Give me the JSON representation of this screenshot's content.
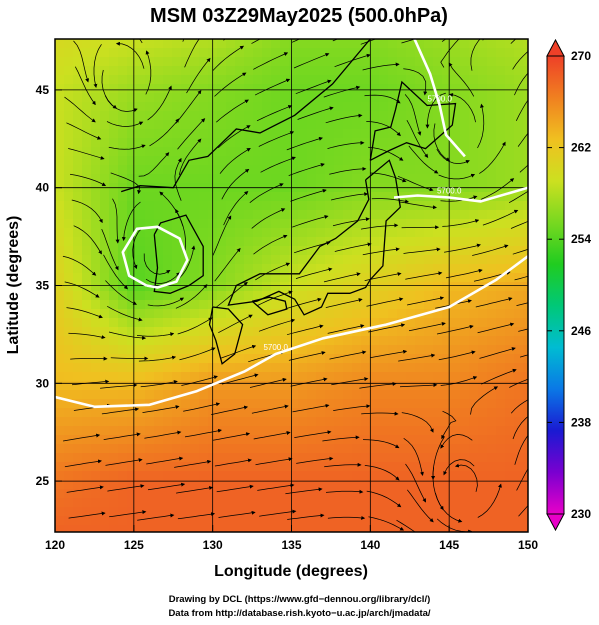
{
  "chart_data": {
    "type": "heatmap",
    "title": "MSM 03Z29May2025 (500.0hPa)",
    "xlabel": "Longitude (degrees)",
    "ylabel": "Latitude  (degrees)",
    "xlim": [
      120,
      150
    ],
    "ylim": [
      22.4,
      47.6
    ],
    "x_ticks": [
      120,
      125,
      130,
      135,
      140,
      145,
      150
    ],
    "y_ticks": [
      25,
      30,
      35,
      40,
      45
    ],
    "colorbar": {
      "ticks": [
        230,
        238,
        246,
        254,
        262,
        270
      ],
      "range": [
        230,
        270
      ],
      "colors": [
        "#e800c8",
        "#7a00d0",
        "#1a1ad2",
        "#0a78e6",
        "#00bcd2",
        "#00c878",
        "#20cc20",
        "#78d820",
        "#cce020",
        "#f0c020",
        "#f08020",
        "#ee4028"
      ]
    },
    "temperature_field": {
      "lon": [
        120,
        125,
        130,
        135,
        140,
        145,
        150
      ],
      "lat": [
        47.6,
        45,
        40,
        35,
        30,
        25,
        22.4
      ],
      "values": [
        [
          260,
          259,
          258,
          256,
          256,
          257,
          258
        ],
        [
          259,
          257,
          256,
          255,
          255,
          256,
          257
        ],
        [
          259,
          255,
          255,
          255,
          256,
          256,
          257
        ],
        [
          261,
          254,
          256,
          259,
          261,
          263,
          264
        ],
        [
          263,
          263,
          265,
          265,
          266,
          266,
          267
        ],
        [
          267,
          268,
          268,
          268,
          268,
          268,
          268
        ],
        [
          268,
          268,
          268,
          268,
          268,
          268,
          268
        ]
      ]
    },
    "contours": [
      {
        "label": "5700.0",
        "points": [
          [
            120,
            29.3
          ],
          [
            122.5,
            28.8
          ],
          [
            126,
            28.9
          ],
          [
            129,
            29.6
          ],
          [
            132,
            30.6
          ],
          [
            134,
            31.5
          ],
          [
            137,
            32.3
          ],
          [
            141,
            33.0
          ],
          [
            145,
            33.9
          ],
          [
            148,
            35.3
          ],
          [
            150,
            36.5
          ]
        ]
      },
      {
        "label": "5700.0",
        "points": [
          [
            141.5,
            39.5
          ],
          [
            143,
            39.6
          ],
          [
            145,
            39.5
          ],
          [
            147,
            39.3
          ],
          [
            150,
            40.0
          ]
        ]
      },
      {
        "label": "5700.0",
        "points": [
          [
            146,
            41.6
          ],
          [
            144.8,
            42.7
          ],
          [
            144.4,
            44.2
          ],
          [
            143.8,
            45.8
          ],
          [
            142.8,
            47.6
          ]
        ]
      },
      {
        "label": "",
        "points": [
          [
            125.8,
            35.0
          ],
          [
            124.7,
            35.5
          ],
          [
            124.3,
            36.7
          ],
          [
            125.2,
            37.9
          ],
          [
            126.5,
            38.0
          ],
          [
            127.9,
            37.4
          ],
          [
            128.4,
            36.3
          ],
          [
            127.7,
            35.2
          ],
          [
            126.5,
            34.9
          ],
          [
            125.8,
            35.0
          ]
        ]
      }
    ],
    "flow": {
      "lows": [
        [
          126.5,
          36.5
        ],
        [
          145.5,
          42.5
        ],
        [
          124.5,
          45.2
        ],
        [
          146,
          24.5
        ]
      ],
      "westerly_band": "southwest-to-west across the domain"
    },
    "grid": true
  },
  "credits": {
    "line1": "Drawing by DCL (https://www.gfd−dennou.org/library/dcl/)",
    "line2": "Data from http://database.rish.kyoto−u.ac.jp/arch/jmadata/"
  }
}
